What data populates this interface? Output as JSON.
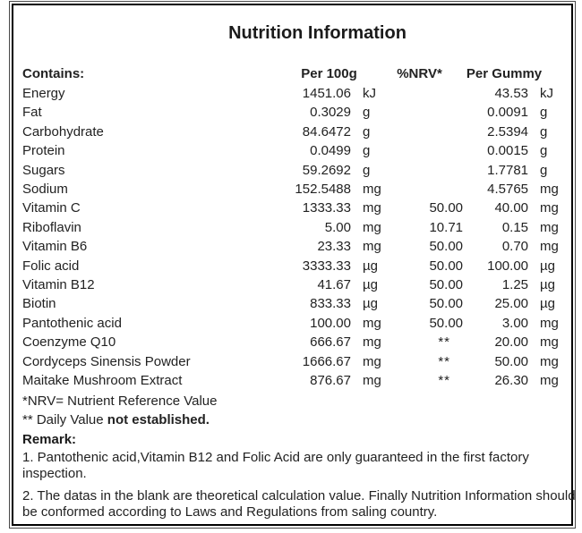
{
  "title": "Nutrition Information",
  "table": {
    "col_headers": {
      "contains": "Contains:",
      "per_100g": "Per 100g",
      "nrv": "%NRV*",
      "per_gummy": "Per Gummy"
    },
    "rows": [
      {
        "name": "Energy",
        "per100_value": "1451.06",
        "per100_unit": "kJ",
        "nrv": "",
        "gummy_value": "43.53",
        "gummy_unit": "kJ"
      },
      {
        "name": "Fat",
        "per100_value": "0.3029",
        "per100_unit": "g",
        "nrv": "",
        "gummy_value": "0.0091",
        "gummy_unit": "g"
      },
      {
        "name": "Carbohydrate",
        "per100_value": "84.6472",
        "per100_unit": "g",
        "nrv": "",
        "gummy_value": "2.5394",
        "gummy_unit": "g"
      },
      {
        "name": "Protein",
        "per100_value": "0.0499",
        "per100_unit": "g",
        "nrv": "",
        "gummy_value": "0.0015",
        "gummy_unit": "g"
      },
      {
        "name": "Sugars",
        "per100_value": "59.2692",
        "per100_unit": "g",
        "nrv": "",
        "gummy_value": "1.7781",
        "gummy_unit": "g"
      },
      {
        "name": "Sodium",
        "per100_value": "152.5488",
        "per100_unit": "mg",
        "nrv": "",
        "gummy_value": "4.5765",
        "gummy_unit": "mg"
      },
      {
        "name": "Vitamin C",
        "per100_value": "1333.33",
        "per100_unit": "mg",
        "nrv": "50.00",
        "gummy_value": "40.00",
        "gummy_unit": "mg"
      },
      {
        "name": "Riboflavin",
        "per100_value": "5.00",
        "per100_unit": "mg",
        "nrv": "10.71",
        "gummy_value": "0.15",
        "gummy_unit": "mg"
      },
      {
        "name": "Vitamin B6",
        "per100_value": "23.33",
        "per100_unit": "mg",
        "nrv": "50.00",
        "gummy_value": "0.70",
        "gummy_unit": "mg"
      },
      {
        "name": "Folic acid",
        "per100_value": "3333.33",
        "per100_unit": "µg",
        "nrv": "50.00",
        "gummy_value": "100.00",
        "gummy_unit": "µg"
      },
      {
        "name": "Vitamin B12",
        "per100_value": "41.67",
        "per100_unit": "µg",
        "nrv": "50.00",
        "gummy_value": "1.25",
        "gummy_unit": "µg"
      },
      {
        "name": "Biotin",
        "per100_value": "833.33",
        "per100_unit": "µg",
        "nrv": "50.00",
        "gummy_value": "25.00",
        "gummy_unit": "µg"
      },
      {
        "name": "Pantothenic acid",
        "per100_value": "100.00",
        "per100_unit": "mg",
        "nrv": "50.00",
        "gummy_value": "3.00",
        "gummy_unit": "mg"
      },
      {
        "name": "Coenzyme Q10",
        "per100_value": "666.67",
        "per100_unit": "mg",
        "nrv": "**",
        "gummy_value": "20.00",
        "gummy_unit": "mg"
      },
      {
        "name": "Cordyceps Sinensis Powder",
        "per100_value": "1666.67",
        "per100_unit": "mg",
        "nrv": "**",
        "gummy_value": "50.00",
        "gummy_unit": "mg"
      },
      {
        "name": "Maitake Mushroom Extract",
        "per100_value": "876.67",
        "per100_unit": "mg",
        "nrv": "**",
        "gummy_value": "26.30",
        "gummy_unit": "mg"
      }
    ]
  },
  "footnotes": {
    "nrv_definition": "*NRV= Nutrient Reference Value",
    "daily_value_prefix": "** Daily Value ",
    "daily_value_bold": "not established."
  },
  "remark": {
    "heading": "Remark:",
    "items": [
      "1. Pantothenic acid,Vitamin B12 and Folic Acid are only guaranteed in the first factory inspection.",
      "2. The datas in the blank are theoretical calculation value. Finally Nutrition Information should be conformed according to Laws and Regulations from saling country."
    ]
  },
  "colors": {
    "background": "#ffffff",
    "text": "#222222",
    "border": "#000000",
    "outer_border_line": "#4a4a4a"
  }
}
